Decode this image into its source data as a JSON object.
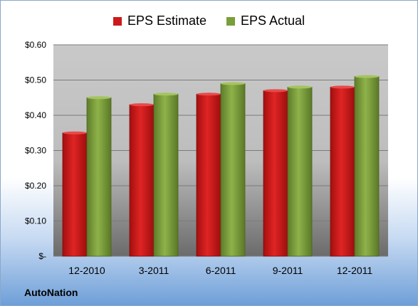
{
  "chart_data": {
    "type": "bar",
    "categories": [
      "12-2010",
      "3-2011",
      "6-2011",
      "9-2011",
      "12-2011"
    ],
    "series": [
      {
        "name": "EPS Estimate",
        "values": [
          0.35,
          0.43,
          0.46,
          0.47,
          0.48
        ],
        "color": "#cc1a1a"
      },
      {
        "name": "EPS Actual",
        "values": [
          0.45,
          0.46,
          0.49,
          0.48,
          0.51
        ],
        "color": "#7a9e3a"
      }
    ],
    "yticks": [
      "$-",
      "$0.10",
      "$0.20",
      "$0.30",
      "$0.40",
      "$0.50",
      "$0.60"
    ],
    "ylim": [
      0,
      0.6
    ],
    "grid": true,
    "legend_position": "top-center",
    "footer": "AutoNation"
  }
}
